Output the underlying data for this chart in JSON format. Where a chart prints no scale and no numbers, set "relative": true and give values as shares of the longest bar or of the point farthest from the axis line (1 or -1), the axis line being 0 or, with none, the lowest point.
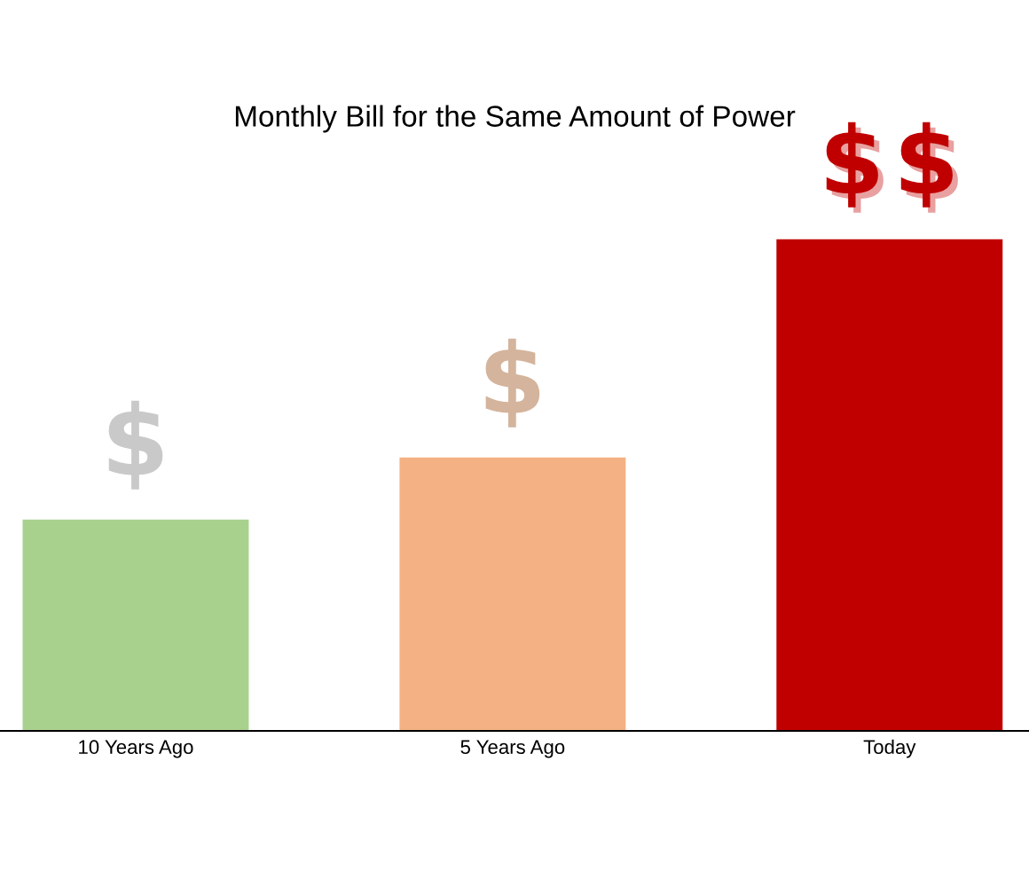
{
  "chart_data": {
    "type": "bar",
    "title": "Monthly Bill for the Same Amount of Power",
    "categories": [
      "10 Years Ago",
      "5 Years Ago",
      "Today"
    ],
    "values": [
      0.43,
      0.556,
      1
    ],
    "colors": [
      "#a9d18e",
      "#f4b183",
      "#c00000"
    ],
    "relative": true,
    "grid": false,
    "legend": false
  }
}
